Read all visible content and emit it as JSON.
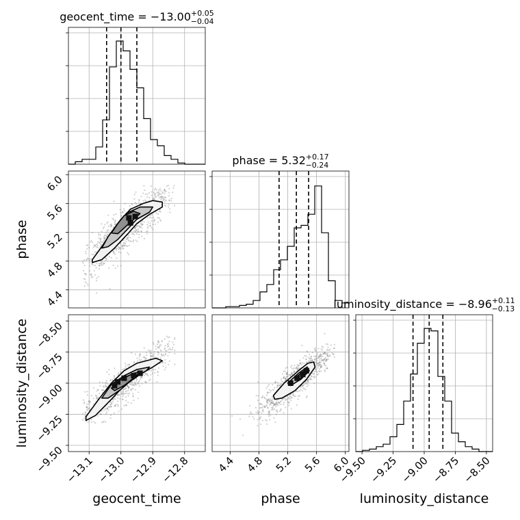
{
  "chart_data": {
    "type": "corner",
    "params": [
      {
        "name": "geocent_time",
        "title": {
          "prefix": "geocent_time = ",
          "value": "−13.00",
          "plus": "+0.05",
          "minus": "−0.04"
        },
        "range": [
          -13.165,
          -12.735
        ],
        "ticks": [
          -13.1,
          -13.0,
          -12.9,
          -12.8
        ],
        "tick_labels": [
          "−13.1",
          "−13.0",
          "−12.9",
          "−12.8"
        ],
        "quantiles": [
          -13.045,
          -13.0,
          -12.95
        ],
        "hist_counts": [
          0,
          2,
          4,
          4,
          14,
          36,
          79,
          100,
          92,
          77,
          62,
          37,
          20,
          15,
          7,
          4,
          1,
          0,
          0,
          0
        ],
        "label": "geocent_time"
      },
      {
        "name": "phase",
        "title": {
          "prefix": "phase = ",
          "value": "5.32",
          "plus": "+0.17",
          "minus": "−0.24"
        },
        "range": [
          4.15,
          6.05
        ],
        "ticks": [
          4.4,
          4.8,
          5.2,
          5.6,
          6.0
        ],
        "tick_labels": [
          "4.4",
          "4.8",
          "5.2",
          "5.6",
          "6.0"
        ],
        "quantiles": [
          5.08,
          5.32,
          5.49
        ],
        "hist_counts": [
          0,
          0,
          1,
          1,
          2,
          3,
          6,
          13,
          19,
          31,
          39,
          50,
          65,
          67,
          76,
          99,
          61,
          22,
          6,
          4
        ],
        "label": "phase"
      },
      {
        "name": "luminosity_distance",
        "title": {
          "prefix": "luminosity_distance = ",
          "value": "−8.96",
          "plus": "+0.11",
          "minus": "−0.13"
        },
        "range": [
          -9.55,
          -8.45
        ],
        "ticks": [
          -9.5,
          -9.25,
          -9.0,
          -8.75,
          -8.5
        ],
        "tick_labels": [
          "−9.50",
          "−9.25",
          "−9.00",
          "−8.75",
          "−8.50"
        ],
        "quantiles": [
          -9.09,
          -8.96,
          -8.85
        ],
        "hist_counts": [
          0,
          1,
          2,
          4,
          6,
          12,
          22,
          41,
          63,
          88,
          100,
          98,
          61,
          41,
          15,
          8,
          4,
          2,
          0,
          0
        ],
        "label": "luminosity_distance"
      }
    ],
    "pairs": [
      {
        "x": "geocent_time",
        "y": "phase",
        "scatter_extent": {
          "x": [
            -13.12,
            -12.83
          ],
          "y": [
            4.2,
            5.85
          ]
        },
        "contours": [
          [
            [
              -13.09,
              4.82
            ],
            [
              -13.06,
              5.0
            ],
            [
              -13.03,
              5.2
            ],
            [
              -13.0,
              5.38
            ],
            [
              -12.97,
              5.52
            ],
            [
              -12.93,
              5.6
            ],
            [
              -12.9,
              5.64
            ],
            [
              -12.87,
              5.62
            ],
            [
              -12.87,
              5.55
            ],
            [
              -12.91,
              5.45
            ],
            [
              -12.95,
              5.32
            ],
            [
              -12.98,
              5.17
            ],
            [
              -13.02,
              4.98
            ],
            [
              -13.06,
              4.82
            ],
            [
              -13.09,
              4.78
            ]
          ],
          [
            [
              -13.06,
              4.98
            ],
            [
              -13.04,
              5.14
            ],
            [
              -13.01,
              5.32
            ],
            [
              -12.98,
              5.47
            ],
            [
              -12.94,
              5.55
            ],
            [
              -12.9,
              5.55
            ],
            [
              -12.91,
              5.48
            ],
            [
              -12.95,
              5.38
            ],
            [
              -12.98,
              5.24
            ],
            [
              -13.01,
              5.1
            ],
            [
              -13.04,
              5.0
            ]
          ],
          [
            [
              -13.03,
              5.19
            ],
            [
              -13.01,
              5.32
            ],
            [
              -12.99,
              5.43
            ],
            [
              -12.96,
              5.49
            ],
            [
              -12.94,
              5.46
            ],
            [
              -12.96,
              5.38
            ],
            [
              -12.99,
              5.26
            ],
            [
              -13.01,
              5.18
            ]
          ]
        ],
        "dense_cells": [
          [
            -12.97,
            5.33
          ],
          [
            -12.975,
            5.4
          ],
          [
            -12.955,
            5.42
          ]
        ]
      },
      {
        "x": "geocent_time",
        "y": "luminosity_distance",
        "scatter_extent": {
          "x": [
            -13.12,
            -12.83
          ],
          "y": [
            -9.32,
            -8.62
          ]
        },
        "contours": [
          [
            [
              -13.11,
              -9.27
            ],
            [
              -13.07,
              -9.13
            ],
            [
              -13.03,
              -9.0
            ],
            [
              -12.99,
              -8.9
            ],
            [
              -12.95,
              -8.84
            ],
            [
              -12.89,
              -8.8
            ],
            [
              -12.87,
              -8.82
            ],
            [
              -12.9,
              -8.87
            ],
            [
              -12.94,
              -8.93
            ],
            [
              -12.99,
              -9.02
            ],
            [
              -13.03,
              -9.13
            ],
            [
              -13.08,
              -9.26
            ],
            [
              -13.11,
              -9.3
            ]
          ],
          [
            [
              -13.06,
              -9.12
            ],
            [
              -13.03,
              -9.01
            ],
            [
              -12.99,
              -8.94
            ],
            [
              -12.95,
              -8.89
            ],
            [
              -12.91,
              -8.87
            ],
            [
              -12.92,
              -8.9
            ],
            [
              -12.96,
              -8.96
            ],
            [
              -13.0,
              -9.05
            ],
            [
              -13.04,
              -9.12
            ]
          ],
          [
            [
              -13.03,
              -9.04
            ],
            [
              -13.0,
              -8.97
            ],
            [
              -12.96,
              -8.92
            ],
            [
              -12.94,
              -8.91
            ],
            [
              -12.96,
              -8.96
            ],
            [
              -12.99,
              -9.02
            ],
            [
              -13.02,
              -9.06
            ]
          ]
        ],
        "dense_cells": [
          [
            -13.02,
            -9.02
          ],
          [
            -13.01,
            -8.99
          ],
          [
            -12.99,
            -8.96
          ],
          [
            -12.96,
            -8.94
          ],
          [
            -12.94,
            -8.92
          ]
        ]
      },
      {
        "x": "phase",
        "y": "luminosity_distance",
        "scatter_extent": {
          "x": [
            4.25,
            5.85
          ],
          "y": [
            -9.42,
            -8.6
          ]
        },
        "contours": [
          [
            [
              5.0,
              -9.1
            ],
            [
              5.15,
              -9.0
            ],
            [
              5.35,
              -8.9
            ],
            [
              5.48,
              -8.84
            ],
            [
              5.56,
              -8.83
            ],
            [
              5.58,
              -8.87
            ],
            [
              5.46,
              -8.97
            ],
            [
              5.3,
              -9.06
            ],
            [
              5.12,
              -9.12
            ],
            [
              5.02,
              -9.13
            ]
          ],
          [
            [
              5.2,
              -9.0
            ],
            [
              5.35,
              -8.92
            ],
            [
              5.47,
              -8.87
            ],
            [
              5.5,
              -8.9
            ],
            [
              5.38,
              -8.97
            ],
            [
              5.24,
              -9.02
            ]
          ],
          [
            [
              5.32,
              -8.95
            ],
            [
              5.45,
              -8.89
            ],
            [
              5.47,
              -8.92
            ],
            [
              5.36,
              -8.97
            ]
          ]
        ],
        "dense_cells": [
          [
            5.24,
            -9.0
          ],
          [
            5.33,
            -8.96
          ],
          [
            5.41,
            -8.93
          ],
          [
            5.46,
            -8.9
          ]
        ]
      }
    ]
  }
}
